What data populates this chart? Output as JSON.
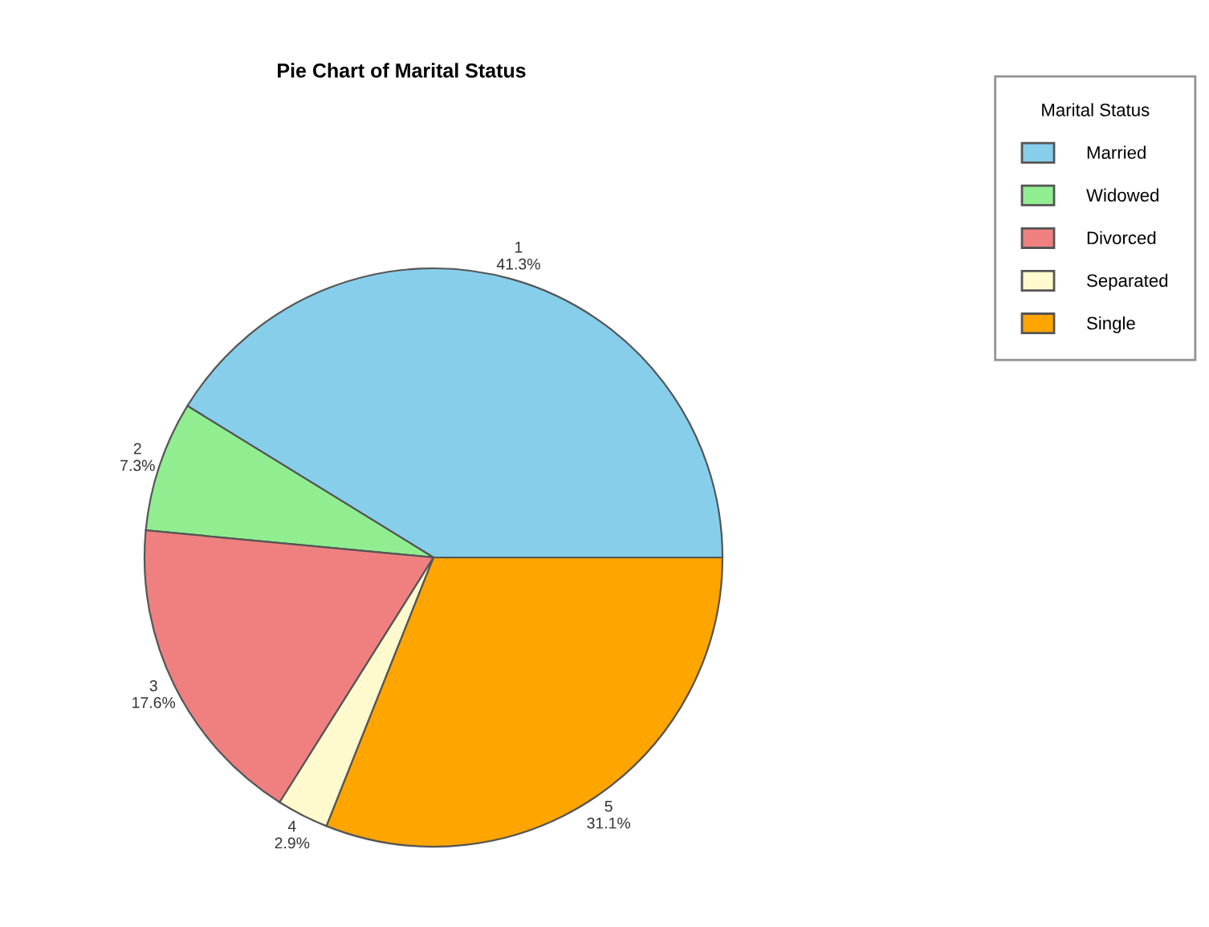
{
  "chart_data": {
    "type": "pie",
    "title": "Pie Chart of Marital Status",
    "legend_title": "Marital Status",
    "legend": "top right",
    "categories": [
      "Married",
      "Widowed",
      "Divorced",
      "Separated",
      "Single"
    ],
    "values": [
      41.3,
      7.3,
      17.6,
      2.9,
      31.1
    ],
    "value_labels": [
      "1\n41.3%",
      "2\n7.3%",
      "3\n17.6%",
      "4\n2.9%",
      "5\n31.1%"
    ],
    "colors": [
      "#87ceeb",
      "#90ee90",
      "#f08080",
      "#fffacd",
      "#ffa500"
    ]
  }
}
